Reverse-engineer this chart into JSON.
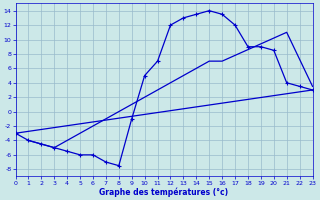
{
  "xlabel": "Graphe des températures (°c)",
  "xlim": [
    0,
    23
  ],
  "ylim": [
    -9,
    15
  ],
  "yticks": [
    -8,
    -6,
    -4,
    -2,
    0,
    2,
    4,
    6,
    8,
    10,
    12,
    14
  ],
  "xticks": [
    0,
    1,
    2,
    3,
    4,
    5,
    6,
    7,
    8,
    9,
    10,
    11,
    12,
    13,
    14,
    15,
    16,
    17,
    18,
    19,
    20,
    21,
    22,
    23
  ],
  "bg_color": "#cce8e8",
  "line_color": "#0000cc",
  "grid_color": "#99bbcc",
  "line1_x": [
    0,
    1,
    2,
    3,
    4,
    5,
    6,
    7,
    8,
    9,
    10,
    11,
    12,
    13,
    14,
    15,
    16,
    17,
    18,
    19,
    20,
    21,
    22,
    23
  ],
  "line1_y": [
    -3,
    -4,
    -4.5,
    -5,
    -5.5,
    -6,
    -6,
    -7,
    -7.5,
    -1,
    5,
    7,
    12,
    13,
    13.5,
    14,
    13.5,
    12,
    9,
    9,
    8.5,
    4,
    3.5,
    3
  ],
  "line2_x": [
    0,
    23
  ],
  "line2_y": [
    -3,
    3
  ],
  "line3_x": [
    1,
    3,
    15,
    16,
    21,
    23
  ],
  "line3_y": [
    -4,
    -5,
    7,
    7,
    11,
    3.5
  ]
}
